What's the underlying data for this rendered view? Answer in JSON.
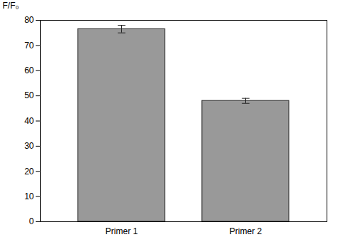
{
  "chart_data": {
    "type": "bar",
    "categories": [
      "Primer 1",
      "Primer 2"
    ],
    "values": [
      76.5,
      48.0
    ],
    "errors": [
      1.5,
      1.0
    ],
    "color": "#999999",
    "ylabel": "F/F₀",
    "ylim": [
      0,
      80
    ],
    "yticks": [
      0,
      10,
      20,
      30,
      40,
      50,
      60,
      70,
      80
    ],
    "grid": false
  }
}
